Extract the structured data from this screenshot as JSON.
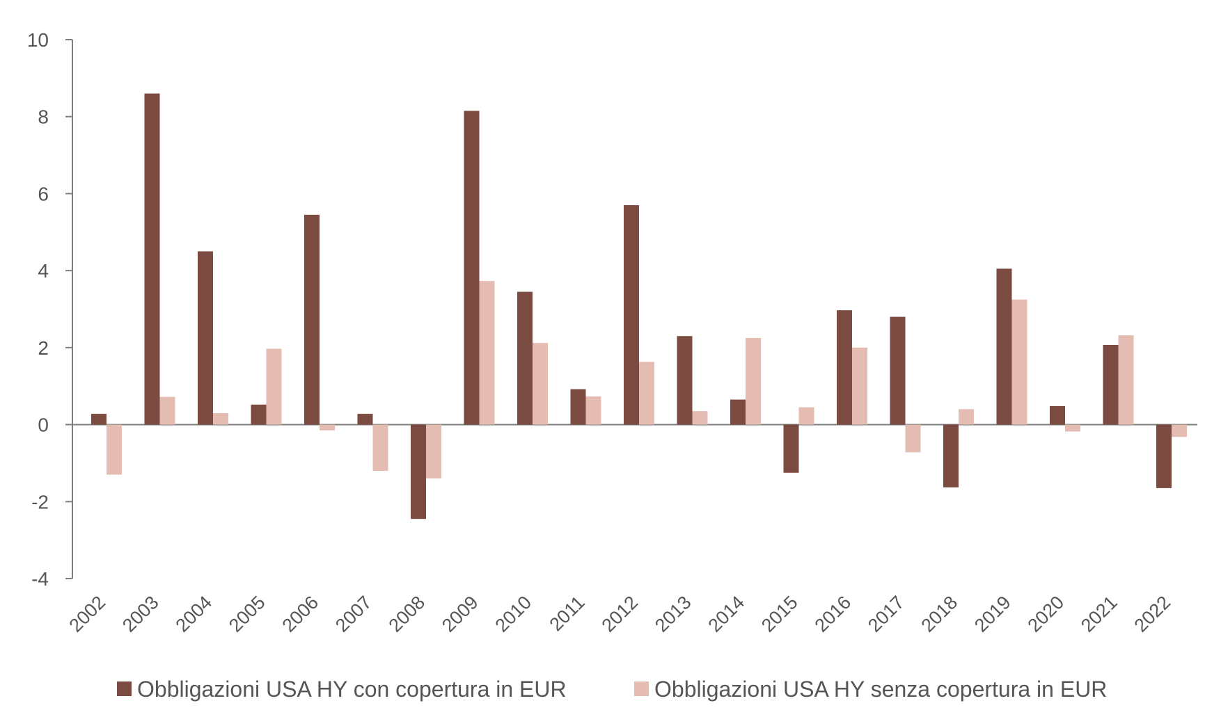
{
  "chart_data": {
    "type": "bar",
    "categories": [
      "2002",
      "2003",
      "2004",
      "2005",
      "2006",
      "2007",
      "2008",
      "2009",
      "2010",
      "2011",
      "2012",
      "2013",
      "2014",
      "2015",
      "2016",
      "2017",
      "2018",
      "2019",
      "2020",
      "2021",
      "2022"
    ],
    "series": [
      {
        "name": "Obbligazioni USA HY con copertura in EUR",
        "color": "#7b4a40",
        "values": [
          0.28,
          8.6,
          4.5,
          0.52,
          5.45,
          0.28,
          -2.45,
          8.15,
          3.45,
          0.92,
          5.7,
          2.3,
          0.65,
          -1.25,
          2.97,
          2.8,
          -1.63,
          4.05,
          0.48,
          2.07,
          -1.65
        ]
      },
      {
        "name": "Obbligazioni USA HY senza copertura in EUR",
        "color": "#e5bcb2",
        "values": [
          -1.3,
          0.72,
          0.3,
          1.97,
          -0.15,
          -1.2,
          -1.4,
          3.73,
          2.12,
          0.73,
          1.63,
          0.35,
          2.25,
          0.45,
          2.0,
          -0.72,
          0.4,
          3.25,
          -0.18,
          2.32,
          -0.32
        ]
      }
    ],
    "ylim": [
      -4,
      10
    ],
    "yticks": [
      "10",
      "8",
      "6",
      "4",
      "2",
      "0",
      "-2",
      "-4"
    ],
    "ytick_values": [
      10,
      8,
      6,
      4,
      2,
      0,
      -2,
      -4
    ],
    "title": "",
    "xlabel": "",
    "ylabel": "",
    "grid": false,
    "legend_position": "bottom-center"
  }
}
